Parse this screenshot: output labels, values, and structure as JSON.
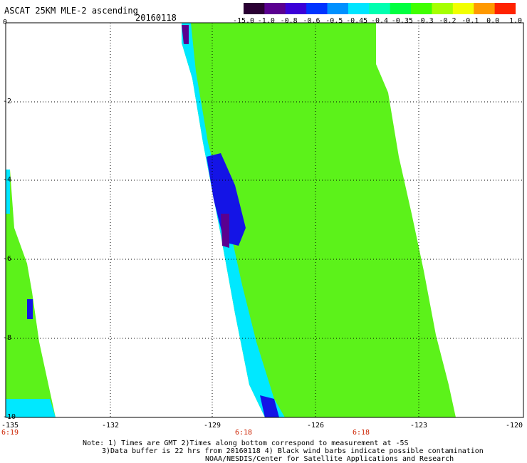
{
  "header": {
    "title": "ASCAT 25KM MLE-2 ascending",
    "date": "20160118"
  },
  "colorbar": {
    "labels": [
      "-15.0",
      "-1.0",
      "-0.8",
      "-0.6",
      "-0.5",
      "-0.45",
      "-0.4",
      "-0.35",
      "-0.3",
      "-0.2",
      "-0.1",
      "0.0",
      "1.0"
    ],
    "colors": [
      "#2a0033",
      "#5a0090",
      "#3b00d8",
      "#0033ff",
      "#0090ff",
      "#00e5ff",
      "#00ffb0",
      "#00ff40",
      "#40ff00",
      "#a6ff00",
      "#f2ff00",
      "#ff9900",
      "#ff2200"
    ]
  },
  "map": {
    "lat_labels": [
      "0",
      "-2",
      "-4",
      "-6",
      "-8",
      "-10"
    ],
    "lon_labels": [
      "-135",
      "-132",
      "-129",
      "-126",
      "-123",
      "-120"
    ],
    "time_labels": [
      "6:19",
      "6:18",
      "6:18"
    ],
    "swath_fill": "#5cf21a",
    "swath_edge": "#00e8ff",
    "swath_low": "#1414e6",
    "swath_min": "#5a0090"
  },
  "footer": {
    "note1": "Note: 1) Times are GMT 2)Times along bottom correspond to measurement at -5S",
    "note2": "3)Data buffer is 22 hrs from 20160118 4) Black wind barbs indicate possible contamination",
    "note3": "NOAA/NESDIS/Center for Satellite Applications and Research"
  }
}
